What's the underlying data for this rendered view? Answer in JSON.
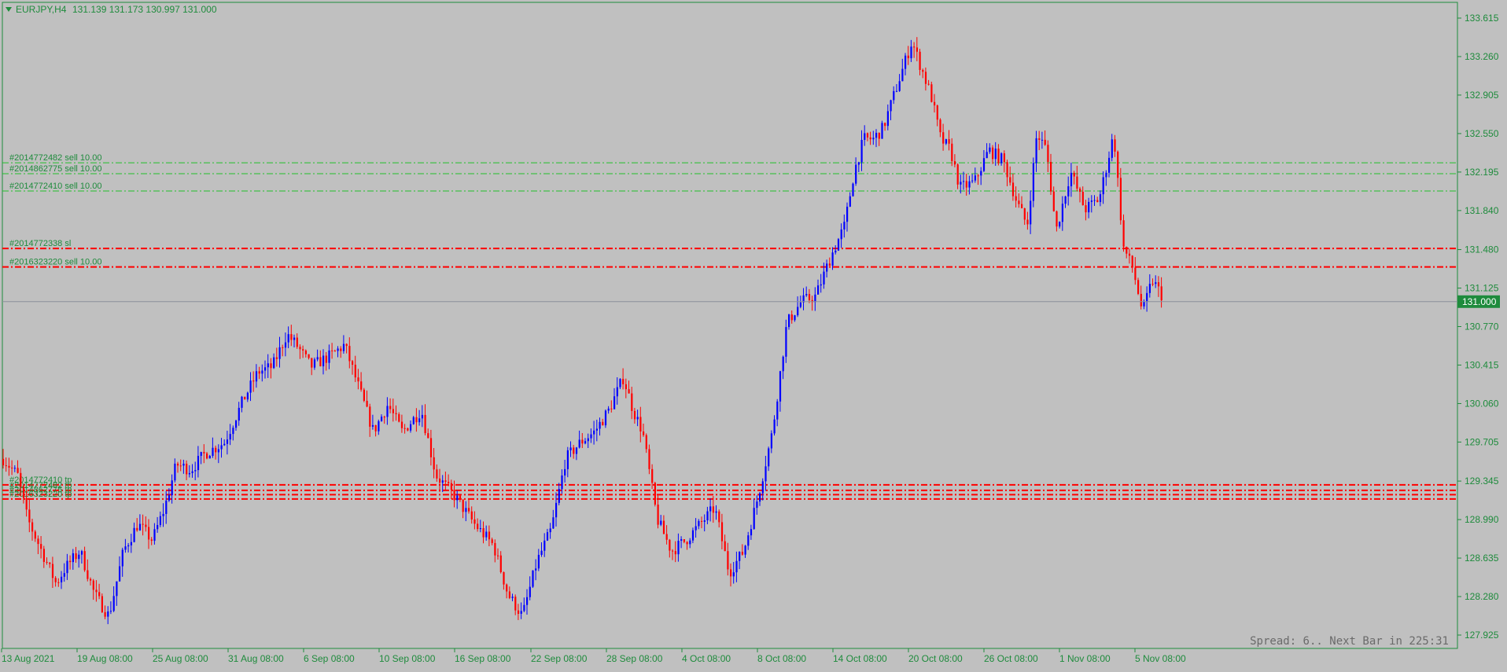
{
  "header": {
    "symbol_label": "EURJPY,H4",
    "ohlc": "131.139 131.173 130.997 131.000"
  },
  "status": {
    "spread_text": "Spread: 6.. Next Bar in 225:31"
  },
  "colors": {
    "background": "#c0c0c0",
    "bull": "#0000ff",
    "bear": "#ff0000",
    "axis_text": "#1e8b3c",
    "grid_border": "#1e8b3c",
    "order_line_green": "#22c02a",
    "order_line_red": "#ff0000",
    "price_tag_bg": "#1e8b3c"
  },
  "chart_data": {
    "type": "candlestick",
    "symbol": "EURJPY",
    "timeframe": "H4",
    "y_ticks": [
      133.615,
      133.26,
      132.905,
      132.55,
      132.195,
      131.84,
      131.48,
      131.125,
      130.77,
      130.415,
      130.06,
      129.705,
      129.345,
      128.99,
      128.635,
      128.28,
      127.925
    ],
    "ylim": [
      127.925,
      133.615
    ],
    "x_ticks": [
      "13 Aug 2021",
      "19 Aug 08:00",
      "25 Aug 08:00",
      "31 Aug 08:00",
      "6 Sep 08:00",
      "10 Sep 08:00",
      "16 Sep 08:00",
      "22 Sep 08:00",
      "28 Sep 08:00",
      "4 Oct 08:00",
      "8 Oct 08:00",
      "14 Oct 08:00",
      "20 Oct 08:00",
      "26 Oct 08:00",
      "1 Nov 08:00",
      "5 Nov 08:00"
    ],
    "current_price": 131.0,
    "current_price_label": "131.000",
    "price_path": [
      [
        0,
        129.55
      ],
      [
        15,
        129.4
      ],
      [
        25,
        129.0
      ],
      [
        40,
        128.7
      ],
      [
        55,
        128.4
      ],
      [
        65,
        128.55
      ],
      [
        80,
        128.7
      ],
      [
        95,
        128.3
      ],
      [
        110,
        128.1
      ],
      [
        125,
        128.7
      ],
      [
        140,
        128.95
      ],
      [
        155,
        128.8
      ],
      [
        168,
        129.1
      ],
      [
        180,
        129.5
      ],
      [
        195,
        129.45
      ],
      [
        210,
        129.6
      ],
      [
        230,
        129.7
      ],
      [
        250,
        130.1
      ],
      [
        265,
        130.35
      ],
      [
        280,
        130.4
      ],
      [
        295,
        130.7
      ],
      [
        305,
        130.6
      ],
      [
        320,
        130.4
      ],
      [
        340,
        130.5
      ],
      [
        355,
        130.6
      ],
      [
        370,
        130.2
      ],
      [
        385,
        129.8
      ],
      [
        400,
        130.05
      ],
      [
        415,
        129.8
      ],
      [
        435,
        130.0
      ],
      [
        450,
        129.4
      ],
      [
        470,
        129.2
      ],
      [
        490,
        128.95
      ],
      [
        510,
        128.75
      ],
      [
        525,
        128.3
      ],
      [
        540,
        128.1
      ],
      [
        555,
        128.6
      ],
      [
        570,
        128.9
      ],
      [
        585,
        129.55
      ],
      [
        600,
        129.7
      ],
      [
        615,
        129.8
      ],
      [
        630,
        130.0
      ],
      [
        645,
        130.3
      ],
      [
        655,
        130.0
      ],
      [
        665,
        129.8
      ],
      [
        680,
        129.0
      ],
      [
        695,
        128.7
      ],
      [
        710,
        128.8
      ],
      [
        725,
        128.95
      ],
      [
        740,
        129.1
      ],
      [
        755,
        128.5
      ],
      [
        770,
        128.7
      ],
      [
        785,
        129.2
      ],
      [
        800,
        129.8
      ],
      [
        815,
        130.8
      ],
      [
        830,
        131.0
      ],
      [
        845,
        131.05
      ],
      [
        860,
        131.4
      ],
      [
        875,
        131.7
      ],
      [
        885,
        132.2
      ],
      [
        895,
        132.5
      ],
      [
        905,
        132.5
      ],
      [
        915,
        132.6
      ],
      [
        930,
        133.0
      ],
      [
        945,
        133.4
      ],
      [
        955,
        133.15
      ],
      [
        965,
        132.9
      ],
      [
        975,
        132.5
      ],
      [
        985,
        132.4
      ],
      [
        995,
        132.05
      ],
      [
        1010,
        132.1
      ],
      [
        1025,
        132.4
      ],
      [
        1040,
        132.3
      ],
      [
        1055,
        131.9
      ],
      [
        1065,
        131.7
      ],
      [
        1075,
        132.55
      ],
      [
        1085,
        132.4
      ],
      [
        1095,
        131.65
      ],
      [
        1110,
        132.2
      ],
      [
        1125,
        131.85
      ],
      [
        1140,
        131.95
      ],
      [
        1155,
        132.55
      ],
      [
        1165,
        131.5
      ],
      [
        1175,
        131.3
      ],
      [
        1185,
        130.9
      ],
      [
        1195,
        131.2
      ],
      [
        1209,
        131.0
      ]
    ],
    "order_lines": [
      {
        "label": "#2014772482 sell 10.00",
        "price": 132.28,
        "color": "#22c02a",
        "style": "dash-dot"
      },
      {
        "label": "#2014862775 sell 10.00",
        "price": 132.18,
        "color": "#22c02a",
        "style": "dash-dot"
      },
      {
        "label": "#2014772410 sell 10.00",
        "price": 132.02,
        "color": "#22c02a",
        "style": "dash-dot"
      },
      {
        "label": "#2014772338 sl",
        "price": 131.49,
        "color": "#ff0000",
        "style": "dash-dot"
      },
      {
        "label": "#2016323220 sell 10.00",
        "price": 131.32,
        "color": "#ff0000",
        "style": "dash-dot"
      },
      {
        "label": "#2014772410 tp",
        "price": 129.31,
        "color": "#ff0000",
        "style": "dash-dot"
      },
      {
        "label": "#2014772482 tp",
        "price": 129.26,
        "color": "#ff0000",
        "style": "dash-dot"
      },
      {
        "label": "#2014862775 tp",
        "price": 129.22,
        "color": "#ff0000",
        "style": "dash-dot"
      },
      {
        "label": "#2016323220 tp",
        "price": 129.18,
        "color": "#ff0000",
        "style": "dash-dot"
      }
    ]
  }
}
